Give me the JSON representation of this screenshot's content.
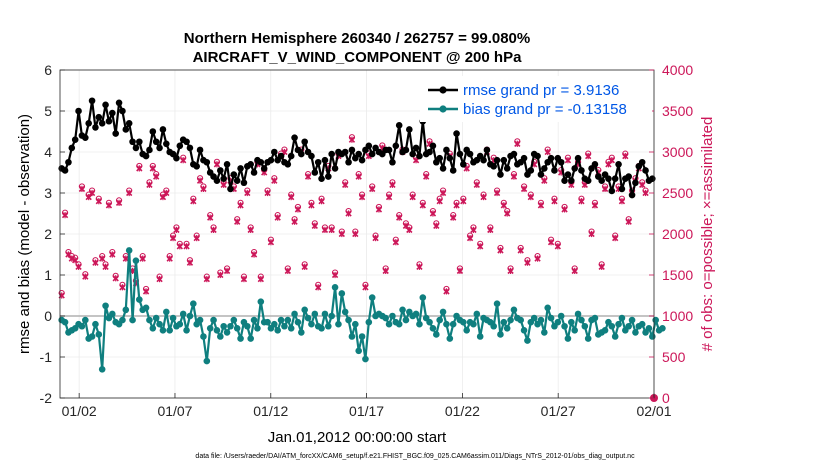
{
  "chart_data": {
    "type": "line",
    "title_line1": "Northern Hemisphere 260340 / 262757 = 99.080%",
    "title_line2": "AIRCRAFT_V_WIND_COMPONENT @ 200 hPa",
    "xlabel": "Jan.01,2012 00:00:00 start",
    "ylabel_left": "rmse and bias (model - observation)",
    "ylabel_right": "# of obs: o=possible; ×=assimilated",
    "footer": "data file: /Users/raeder/DAI/ATM_forcXX/CAM6_setup/f.e21.FHIST_BGC.f09_025.CAM6assim.011/Diags_NTrS_2012-01/obs_diag_output.nc",
    "x_ticks": [
      {
        "label": "01/02",
        "value": 1
      },
      {
        "label": "01/07",
        "value": 6
      },
      {
        "label": "01/12",
        "value": 11
      },
      {
        "label": "01/17",
        "value": 16
      },
      {
        "label": "01/22",
        "value": 21
      },
      {
        "label": "01/27",
        "value": 26
      },
      {
        "label": "02/01",
        "value": 31
      }
    ],
    "xlim": [
      0,
      31
    ],
    "ylim_left": [
      -2,
      6
    ],
    "yticks_left": [
      "-2",
      "-1",
      "0",
      "1",
      "2",
      "3",
      "4",
      "5",
      "6"
    ],
    "ylim_right": [
      0,
      4000
    ],
    "yticks_right": [
      "0",
      "500",
      "1000",
      "1500",
      "2000",
      "2500",
      "3000",
      "3500",
      "4000"
    ],
    "legend": {
      "position": "top-right",
      "rmse_label": "rmse grand pr = 3.9136",
      "bias_label": "bias grand pr = -0.13158"
    },
    "colors": {
      "rmse": "#000000",
      "bias": "#0f7f7f",
      "obs": "#cc1759",
      "zero_line": "#b0b0b0",
      "grid": "#ebebeb",
      "legend_text": "#0057e6"
    },
    "series": {
      "rmse": [
        3.6,
        3.55,
        3.75,
        4.1,
        4.3,
        5.0,
        4.4,
        4.35,
        4.7,
        5.25,
        4.6,
        4.85,
        4.7,
        5.15,
        4.75,
        4.95,
        4.45,
        5.2,
        5.0,
        4.55,
        4.7,
        4.25,
        4.1,
        4.25,
        3.95,
        3.9,
        4.05,
        4.5,
        4.25,
        4.1,
        4.55,
        4.2,
        4.0,
        3.95,
        3.85,
        4.15,
        4.3,
        4.25,
        4.1,
        3.7,
        3.65,
        4.05,
        3.8,
        3.75,
        3.5,
        3.4,
        3.3,
        3.55,
        3.35,
        3.7,
        3.1,
        3.45,
        3.3,
        3.6,
        3.25,
        3.65,
        3.7,
        3.5,
        3.8,
        3.75,
        3.6,
        3.75,
        3.8,
        4.0,
        3.8,
        3.9,
        3.75,
        3.7,
        3.9,
        4.35,
        4.05,
        3.95,
        4.25,
        4.0,
        3.9,
        3.5,
        3.75,
        3.35,
        3.8,
        3.4,
        3.95,
        3.6,
        4.0,
        3.95,
        4.0,
        3.75,
        4.05,
        3.85,
        3.95,
        3.8,
        4.05,
        4.15,
        3.95,
        4.1,
        4.0,
        3.95,
        4.05,
        4.05,
        3.75,
        4.15,
        4.65,
        4.0,
        4.05,
        4.55,
        3.95,
        4.1,
        3.9,
        4.75,
        3.95,
        4.0,
        4.15,
        3.75,
        3.85,
        3.6,
        4.05,
        3.85,
        3.55,
        4.45,
        3.95,
        3.7,
        4.05,
        3.95,
        3.75,
        3.8,
        3.9,
        3.8,
        4.05,
        3.7,
        3.65,
        3.8,
        3.45,
        3.8,
        3.6,
        3.9,
        3.95,
        3.7,
        3.75,
        3.85,
        3.45,
        3.55,
        3.95,
        3.9,
        3.45,
        3.6,
        3.75,
        3.85,
        3.55,
        3.85,
        3.75,
        3.3,
        3.45,
        3.3,
        3.6,
        3.85,
        3.55,
        3.35,
        3.3,
        3.6,
        3.7,
        3.4,
        3.3,
        3.45,
        3.35,
        3.05,
        3.35,
        3.7,
        3.1,
        3.35,
        3.4,
        2.95,
        3.25,
        3.65,
        3.75,
        3.55,
        3.3,
        3.35
      ],
      "bias": [
        -0.1,
        -0.15,
        -0.4,
        -0.35,
        -0.3,
        -0.2,
        -0.25,
        -0.1,
        -0.55,
        -0.5,
        -0.2,
        -0.45,
        -1.3,
        0.25,
        -0.05,
        0.05,
        -0.15,
        -0.2,
        -0.1,
        0.15,
        1.6,
        -0.1,
        1.35,
        0.4,
        0.15,
        0.2,
        -0.1,
        -0.3,
        -0.05,
        -0.2,
        -0.35,
        0.1,
        -0.35,
        -0.05,
        -0.25,
        -0.2,
        0.05,
        -0.35,
        0.0,
        0.3,
        -0.2,
        -0.1,
        -0.5,
        -1.1,
        -0.3,
        -0.1,
        -0.35,
        -0.5,
        -0.25,
        -0.4,
        -0.25,
        -0.1,
        -0.3,
        -0.55,
        -0.15,
        -0.25,
        -0.55,
        -0.1,
        -0.3,
        0.35,
        -0.15,
        -0.15,
        -0.3,
        -0.2,
        -0.35,
        -0.1,
        -0.25,
        -0.1,
        -0.3,
        0.05,
        -0.15,
        -0.4,
        0.15,
        -0.05,
        -0.2,
        0.05,
        -0.25,
        -0.3,
        0.05,
        -0.25,
        0.0,
        0.7,
        -0.2,
        0.55,
        0.1,
        -0.1,
        -0.5,
        -0.2,
        -0.85,
        -0.5,
        -1.05,
        -0.15,
        0.45,
        0.0,
        0.05,
        0.0,
        -0.05,
        -0.2,
        0.0,
        -0.15,
        -0.2,
        0.15,
        -0.1,
        0.1,
        0.0,
        0.05,
        -0.2,
        0.45,
        -0.05,
        -0.15,
        -0.3,
        -0.45,
        -0.1,
        0.1,
        -0.2,
        -0.55,
        -0.2,
        0.0,
        -0.1,
        -0.15,
        -0.35,
        -0.15,
        -0.2,
        0.05,
        -0.5,
        -0.05,
        -0.1,
        -0.15,
        -0.25,
        0.3,
        -0.45,
        -0.15,
        -0.3,
        -0.1,
        0.15,
        -0.05,
        -0.1,
        -0.35,
        -0.6,
        -0.15,
        -0.05,
        -0.2,
        -0.1,
        -0.4,
        0.2,
        -0.05,
        -0.25,
        -0.15,
        0.0,
        -0.25,
        -0.55,
        -0.15,
        -0.35,
        0.05,
        -0.1,
        -0.25,
        -0.55,
        -0.1,
        -0.05,
        -0.45,
        -0.4,
        -0.35,
        -0.15,
        -0.25,
        -0.5,
        -0.2,
        -0.05,
        -0.35,
        -0.25,
        -0.1,
        -0.4,
        -0.25,
        -0.2,
        -0.4,
        -0.3,
        -0.5,
        -0.1,
        -0.35,
        -0.3
      ],
      "obs_assimilated": [
        1250,
        2230,
        1750,
        1700,
        1680,
        1600,
        2550,
        1480,
        2450,
        2500,
        1650,
        2400,
        1700,
        1600,
        2350,
        1750,
        1460,
        2380,
        1350,
        1700,
        2500,
        1550,
        1400,
        2800,
        1700,
        1300,
        2600,
        2800,
        2700,
        1450,
        2450,
        2500,
        1700,
        1950,
        2050,
        1850,
        2900,
        1850,
        1650,
        2400,
        1950,
        2650,
        2550,
        1450,
        2200,
        2050,
        2850,
        1500,
        2600,
        1550,
        2650,
        2550,
        2150,
        2350,
        1450,
        2500,
        2050,
        1750,
        2850,
        1450,
        2750,
        2500,
        1900,
        2650,
        2200,
        2950,
        3000,
        1550,
        2450,
        2150,
        2300,
        3000,
        1600,
        2700,
        2350,
        2100,
        1350,
        2400,
        2050,
        2800,
        2050,
        1500,
        2950,
        2000,
        2600,
        2250,
        3150,
        2000,
        2700,
        2450,
        1350,
        2950,
        2550,
        1950,
        2300,
        3050,
        1550,
        2450,
        2600,
        1900,
        2200,
        3000,
        2100,
        2050,
        2450,
        2900,
        1600,
        2350,
        2700,
        3100,
        2250,
        2100,
        2400,
        2500,
        1300,
        2950,
        2200,
        2350,
        1550,
        2400,
        2800,
        1950,
        2050,
        2600,
        1850,
        2450,
        3000,
        2050,
        2900,
        2500,
        1800,
        2350,
        2250,
        1550,
        2700,
        3100,
        1800,
        2550,
        1650,
        2450,
        2850,
        1700,
        2350,
        2650,
        3000,
        1900,
        2400,
        1850,
        2750,
        2300,
        2900,
        2600,
        1550,
        2850,
        2400,
        2600,
        2950,
        2000,
        2350,
        2750,
        1600,
        2550,
        2850,
        2900,
        1950,
        2550,
        2400,
        2950,
        2150,
        2500,
        2650,
        2800,
        2600,
        2500
      ],
      "obs_possible": [
        1280,
        2260,
        1780,
        1730,
        1710,
        1630,
        2580,
        1510,
        2480,
        2530,
        1680,
        2430,
        1730,
        1630,
        2380,
        1780,
        1490,
        2410,
        1380,
        1730,
        2530,
        1580,
        1430,
        2830,
        1730,
        1330,
        2630,
        2830,
        2730,
        1480,
        2480,
        2530,
        1730,
        1980,
        2080,
        1880,
        2930,
        1880,
        1680,
        2430,
        1980,
        2680,
        2580,
        1480,
        2230,
        2080,
        2880,
        1530,
        2630,
        1580,
        2680,
        2580,
        2180,
        2380,
        1480,
        2530,
        2080,
        1780,
        2880,
        1480,
        2780,
        2530,
        1930,
        2680,
        2230,
        2980,
        3030,
        1580,
        2480,
        2180,
        2330,
        3030,
        1630,
        2730,
        2380,
        2130,
        1380,
        2430,
        2080,
        2830,
        2080,
        1530,
        2980,
        2030,
        2630,
        2280,
        3180,
        2030,
        2730,
        2480,
        1380,
        2980,
        2580,
        1980,
        2330,
        3080,
        1580,
        2480,
        2630,
        1930,
        2230,
        3030,
        2130,
        2080,
        2480,
        2930,
        1630,
        2380,
        2730,
        3130,
        2280,
        2130,
        2430,
        2530,
        1330,
        2980,
        2230,
        2380,
        1580,
        2430,
        2830,
        1980,
        2080,
        2630,
        1880,
        2480,
        3030,
        2080,
        2930,
        2530,
        1830,
        2380,
        2280,
        1580,
        2730,
        3130,
        1830,
        2580,
        1680,
        2480,
        2880,
        1730,
        2380,
        2680,
        3030,
        1930,
        2430,
        1880,
        2780,
        2330,
        2930,
        2630,
        1580,
        2880,
        2430,
        2630,
        2980,
        2030,
        2380,
        2780,
        1630,
        2580,
        2880,
        2930,
        1980,
        2580,
        2430,
        2980,
        2180,
        2530,
        2680,
        2830,
        2630,
        2530
      ]
    }
  }
}
